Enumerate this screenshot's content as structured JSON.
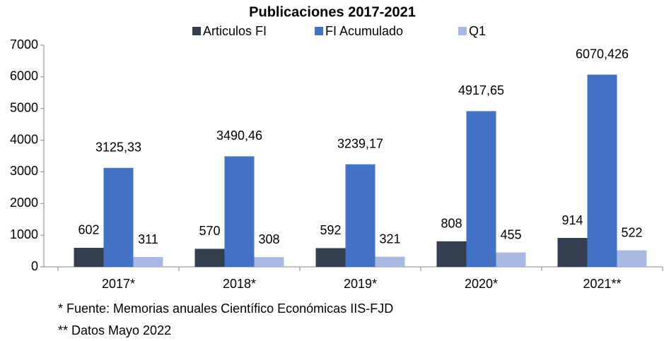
{
  "chart_data": {
    "type": "bar",
    "title": "Publicaciones 2017-2021",
    "categories": [
      "2017*",
      "2018*",
      "2019*",
      "2020*",
      "2021**"
    ],
    "series": [
      {
        "name": "Articulos FI",
        "color": "#333f50",
        "values": [
          602,
          570,
          592,
          808,
          914
        ]
      },
      {
        "name": "FI Acumulado",
        "color": "#4472c4",
        "values": [
          3125.33,
          3490.46,
          3239.17,
          4917.65,
          6070.426
        ],
        "value_labels": [
          "3125,33",
          "3490,46",
          "3239,17",
          "4917,65",
          "6070,426"
        ]
      },
      {
        "name": "Q1",
        "color": "#a9b8e0",
        "values": [
          311,
          308,
          321,
          455,
          522
        ]
      }
    ],
    "ylim": [
      0,
      7000
    ],
    "yticks": [
      0,
      1000,
      2000,
      3000,
      4000,
      5000,
      6000,
      7000
    ],
    "legend": "top",
    "grid": false,
    "notes": [
      "* Fuente: Memorias anuales Científico Económicas IIS-FJD",
      "** Datos Mayo 2022"
    ]
  }
}
